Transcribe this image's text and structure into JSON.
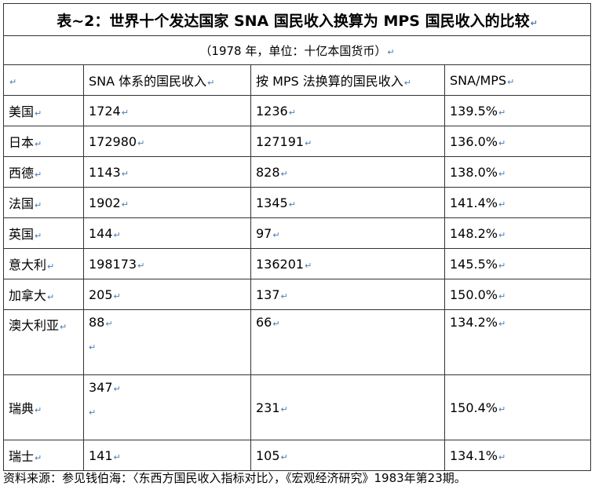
{
  "title": "表~2：世界十个发达国家 SNA 国民收入换算为 MPS 国民收入的比较",
  "subtitle": "（1978 年，单位：十亿本国货币）",
  "return_mark": "↵",
  "headers": [
    "",
    "SNA 体系的国民收入",
    "按 MPS 法换算的国民收入",
    "SNA/MPS"
  ],
  "rows": [
    {
      "country": "美国",
      "sna": "1724",
      "mps": "1236",
      "ratio": "139.5%"
    },
    {
      "country": "日本",
      "sna": "172980",
      "mps": "127191",
      "ratio": "136.0%"
    },
    {
      "country": "西德",
      "sna": "1143",
      "mps": "828",
      "ratio": "138.0%"
    },
    {
      "country": "法国",
      "sna": "1902",
      "mps": "1345",
      "ratio": "141.4%"
    },
    {
      "country": "英国",
      "sna": "144",
      "mps": "97",
      "ratio": "148.2%"
    },
    {
      "country": "意大利",
      "sna": "198173",
      "mps": "136201",
      "ratio": "145.5%"
    },
    {
      "country": "加拿大",
      "sna": "205",
      "mps": "137",
      "ratio": "150.0%"
    },
    {
      "country": "澳大利亚",
      "sna": "88",
      "mps": "66",
      "ratio": "134.2%"
    },
    {
      "country": "瑞典",
      "sna": "347",
      "mps": "231",
      "ratio": "150.4%"
    },
    {
      "country": "瑞士",
      "sna": "141",
      "mps": "105",
      "ratio": "134.1%"
    }
  ],
  "source": "资料来源：参见钱伯海：〈东西方国民收入指标对比〉，《宏观经济研究》1983年第23期。"
}
